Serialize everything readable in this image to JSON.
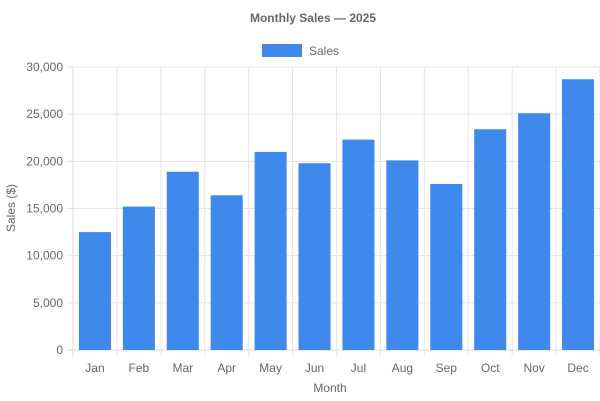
{
  "chart_data": {
    "type": "bar",
    "title": "Monthly Sales — 2025",
    "xlabel": "Month",
    "ylabel": "Sales ($)",
    "categories": [
      "Jan",
      "Feb",
      "Mar",
      "Apr",
      "May",
      "Jun",
      "Jul",
      "Aug",
      "Sep",
      "Oct",
      "Nov",
      "Dec"
    ],
    "series": [
      {
        "name": "Sales",
        "values": [
          12500,
          15200,
          18900,
          16400,
          21000,
          19800,
          22300,
          20100,
          17600,
          23400,
          25100,
          28700
        ]
      }
    ],
    "ylim": [
      0,
      30000
    ],
    "yticks": [
      0,
      5000,
      10000,
      15000,
      20000,
      25000,
      30000
    ],
    "ytick_labels": [
      "0",
      "5,000",
      "10,000",
      "15,000",
      "20,000",
      "25,000",
      "30,000"
    ],
    "grid": true,
    "legend_position": "top-center",
    "colors": {
      "bar": "#3f89ed"
    }
  }
}
